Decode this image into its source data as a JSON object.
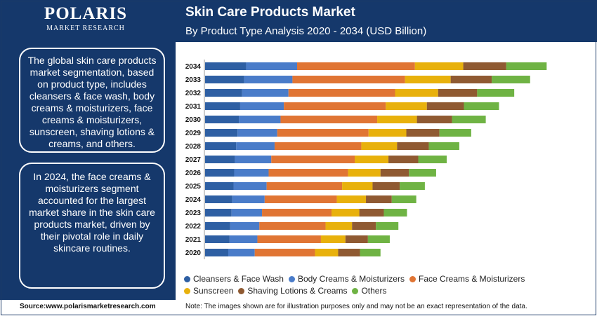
{
  "header": {
    "brand_name": "POLARIS",
    "brand_sub": "MARKET RESEARCH",
    "title": "Skin Care Products Market",
    "subtitle": "By Product Type Analysis 2020 - 2034 (USD Billion)"
  },
  "sidebar": {
    "box1": "The global skin care products market segmentation, based on product type, includes cleansers & face wash, body creams & moisturizers, face creams & moisturizers, sunscreen, shaving lotions & creams, and others.",
    "box2": "In 2024, the face creams & moisturizers segment accounted for the largest market share in the skin care products market, driven by their pivotal role in daily skincare routines."
  },
  "footer": {
    "source": "Source:www.polarismarketresearch.com",
    "note": "Note: The images shown are for illustration purposes only and may not be an exact representation of the data."
  },
  "chart_data": {
    "type": "bar",
    "orientation": "horizontal",
    "stacked": true,
    "categories": [
      "2020",
      "2021",
      "2022",
      "2023",
      "2024",
      "2025",
      "2026",
      "2027",
      "2028",
      "2029",
      "2030",
      "2031",
      "2032",
      "2033",
      "2034"
    ],
    "series": [
      {
        "name": "Cleansers & Face Wash",
        "color": "#2e5fa3",
        "values": [
          35,
          37,
          38,
          40,
          41,
          43,
          44,
          45,
          47,
          49,
          51,
          53,
          56,
          59,
          62
        ]
      },
      {
        "name": "Body Creams & Moisturizers",
        "color": "#4a7cc9",
        "values": [
          40,
          42,
          44,
          46,
          49,
          50,
          52,
          55,
          58,
          60,
          63,
          66,
          70,
          73,
          77
        ]
      },
      {
        "name": "Face Creams & Moisturizers",
        "color": "#e07534",
        "values": [
          91,
          96,
          100,
          105,
          109,
          114,
          120,
          126,
          131,
          138,
          146,
          154,
          161,
          170,
          178
        ]
      },
      {
        "name": "Sunscreen",
        "color": "#e8b10c",
        "values": [
          35,
          37,
          40,
          42,
          44,
          46,
          49,
          51,
          54,
          57,
          60,
          62,
          65,
          69,
          73
        ]
      },
      {
        "name": "Shaving Lotions & Creams",
        "color": "#8f5a32",
        "values": [
          33,
          34,
          36,
          37,
          39,
          41,
          43,
          45,
          48,
          50,
          53,
          56,
          59,
          62,
          65
        ]
      },
      {
        "name": "Others",
        "color": "#6fb344",
        "values": [
          31,
          33,
          34,
          35,
          37,
          38,
          41,
          43,
          46,
          48,
          51,
          53,
          56,
          58,
          61
        ]
      }
    ]
  }
}
